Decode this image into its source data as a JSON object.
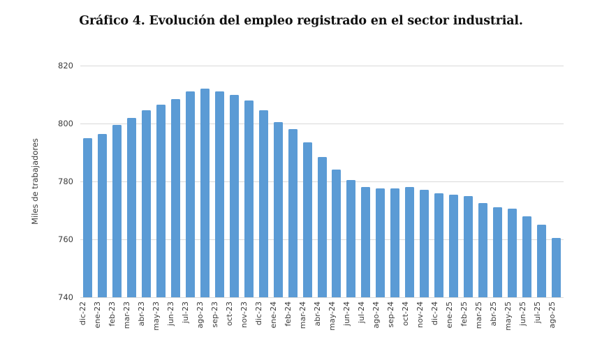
{
  "chart_data": {
    "type": "bar",
    "title": "Gráfico 4. Evolución del empleo registrado en el sector industrial.",
    "xlabel": "",
    "ylabel": "Miles de trabajadores",
    "ylim": [
      740,
      820
    ],
    "yticks": [
      740,
      760,
      780,
      800,
      820
    ],
    "grid": true,
    "legend": false,
    "categories": [
      "dic-22",
      "ene-23",
      "feb-23",
      "mar-23",
      "abr-23",
      "may-23",
      "jun-23",
      "jul-23",
      "ago-23",
      "sep-23",
      "oct-23",
      "nov-23",
      "dic-23",
      "ene-24",
      "feb-24",
      "mar-24",
      "abr-24",
      "may-24",
      "jun-24",
      "jul-24",
      "ago-24",
      "sep-24",
      "oct-24",
      "nov-24",
      "dic-24",
      "ene-25",
      "feb-25",
      "mar-25",
      "abr-25",
      "may-25",
      "jun-25",
      "jul-25",
      "ago-25"
    ],
    "values": [
      795,
      796.5,
      799.5,
      802,
      804.5,
      806.5,
      808.5,
      811,
      812,
      811,
      810,
      808,
      804.5,
      800.5,
      798,
      793.5,
      788.5,
      784,
      780.5,
      778,
      777.5,
      777.5,
      778,
      777,
      776,
      775.5,
      775,
      772.5,
      771,
      770.5,
      768,
      765,
      760.5
    ]
  },
  "colors": {
    "bar": "#5B9BD5",
    "gridline": "#D9D9D9",
    "axis_text": "#3C3C3C",
    "title_text": "#111111"
  }
}
